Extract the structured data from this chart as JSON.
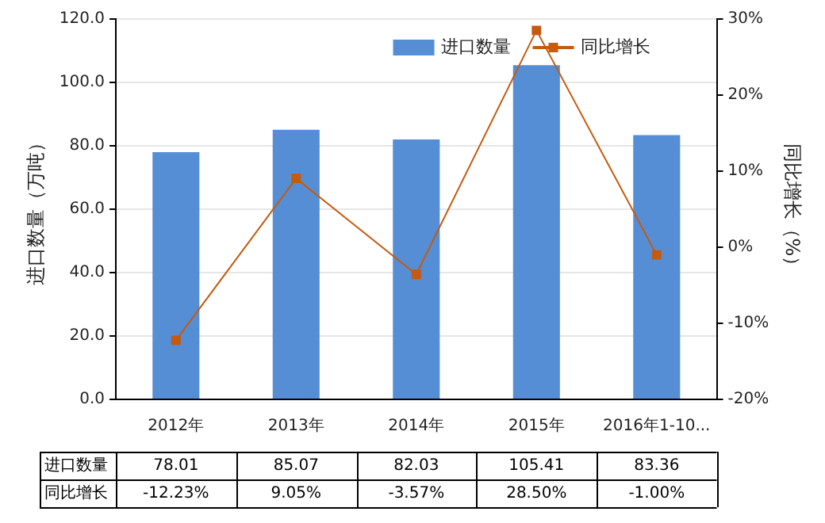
{
  "chart_data": {
    "type": "bar",
    "ylabel": "进口数量（万吨）",
    "y2label": "同比增长（%）",
    "categories": [
      "2012年",
      "2013年",
      "2014年",
      "2015年",
      "2016年1-10..."
    ],
    "series": [
      {
        "name": "进口数量",
        "color": "#558ed5",
        "values": [
          78.01,
          85.07,
          82.03,
          105.41,
          83.36
        ],
        "value_labels": [
          "78.01",
          "85.07",
          "82.03",
          "105.41",
          "83.36"
        ]
      },
      {
        "name": "同比增长",
        "type": "line",
        "axis": "y2",
        "color": "#c55a11",
        "marker": "square",
        "values": [
          -12.23,
          9.05,
          -3.57,
          28.5,
          -1.0
        ],
        "value_labels": [
          "-12.23%",
          "9.05%",
          "-3.57%",
          "28.50%",
          "-1.00%"
        ]
      }
    ],
    "ylim": [
      0,
      120
    ],
    "yticks": [
      {
        "value": 0,
        "label": "0.0"
      },
      {
        "value": 20,
        "label": "20.0"
      },
      {
        "value": 40,
        "label": "40.0"
      },
      {
        "value": 60,
        "label": "60.0"
      },
      {
        "value": 80,
        "label": "80.0"
      },
      {
        "value": 100,
        "label": "100.0"
      },
      {
        "value": 120,
        "label": "120.0"
      }
    ],
    "y2lim": [
      -20,
      30
    ],
    "y2ticks": [
      {
        "value": -20,
        "label": "-20%"
      },
      {
        "value": -10,
        "label": "-10%"
      },
      {
        "value": 0,
        "label": "0%"
      },
      {
        "value": 10,
        "label": "10%"
      },
      {
        "value": 20,
        "label": "20%"
      },
      {
        "value": 30,
        "label": "30%"
      }
    ],
    "grid": "y",
    "legend": "top right"
  }
}
